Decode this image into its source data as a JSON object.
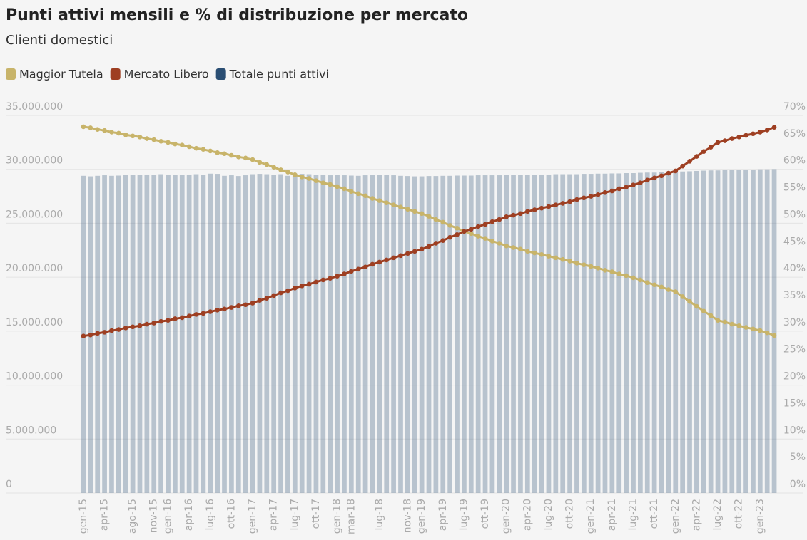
{
  "chart_data": {
    "type": "bar-line",
    "title": "Punti attivi mensili e % di distribuzione per mercato",
    "subtitle": "Clienti domestici",
    "categories": [
      "gen-15",
      null,
      null,
      "apr-15",
      null,
      null,
      null,
      "ago-15",
      null,
      null,
      "nov-15",
      null,
      "gen-16",
      null,
      null,
      "apr-16",
      null,
      null,
      "lug-16",
      null,
      null,
      "ott-16",
      null,
      null,
      "gen-17",
      null,
      null,
      "apr-17",
      null,
      null,
      "lug-17",
      null,
      null,
      "ott-17",
      null,
      null,
      "gen-18",
      null,
      "mar-18",
      null,
      null,
      null,
      "lug-18",
      null,
      null,
      null,
      "nov-18",
      null,
      "gen-19",
      null,
      null,
      "apr-19",
      null,
      null,
      "lug-19",
      null,
      null,
      "ott-19",
      null,
      null,
      "gen-20",
      null,
      null,
      "apr-20",
      null,
      null,
      "lug-20",
      null,
      null,
      "ott-20",
      null,
      null,
      "gen-21",
      null,
      null,
      "apr-21",
      null,
      null,
      "lug-21",
      null,
      null,
      "ott-21",
      null,
      null,
      "gen-22",
      null,
      null,
      "apr-22",
      null,
      null,
      "lug-22",
      null,
      null,
      "ott-22",
      null,
      null,
      "gen-23",
      null,
      null
    ],
    "series": [
      {
        "name": "Maggior Tutela",
        "color": "#c8b46a",
        "type": "line",
        "axis": "y2",
        "values": [
          67.9,
          67.7,
          67.4,
          67.2,
          66.9,
          66.7,
          66.4,
          66.2,
          66.0,
          65.7,
          65.5,
          65.2,
          65.0,
          64.7,
          64.5,
          64.2,
          63.9,
          63.7,
          63.4,
          63.1,
          62.9,
          62.6,
          62.3,
          62.1,
          61.8,
          61.3,
          60.9,
          60.4,
          59.9,
          59.5,
          59.0,
          58.6,
          58.3,
          57.9,
          57.5,
          57.2,
          56.8,
          56.4,
          55.9,
          55.5,
          55.1,
          54.6,
          54.2,
          53.8,
          53.4,
          53.0,
          52.6,
          52.2,
          51.8,
          51.3,
          50.7,
          50.2,
          49.6,
          49.1,
          48.5,
          48.1,
          47.6,
          47.2,
          46.7,
          46.3,
          45.8,
          45.5,
          45.2,
          44.8,
          44.5,
          44.2,
          43.9,
          43.6,
          43.3,
          43.0,
          42.6,
          42.3,
          42.0,
          41.7,
          41.3,
          41.0,
          40.6,
          40.3,
          39.9,
          39.5,
          39.0,
          38.6,
          38.2,
          37.7,
          37.3,
          36.4,
          35.5,
          34.6,
          33.7,
          32.9,
          32.0,
          31.7,
          31.3,
          31.0,
          30.7,
          30.4,
          30.1,
          29.7,
          29.2
        ]
      },
      {
        "name": "Mercato Libero",
        "color": "#9e3f22",
        "type": "line",
        "axis": "y2",
        "values": [
          29.1,
          29.3,
          29.6,
          29.8,
          30.1,
          30.3,
          30.6,
          30.8,
          31.0,
          31.3,
          31.5,
          31.8,
          32.0,
          32.3,
          32.5,
          32.8,
          33.1,
          33.3,
          33.6,
          33.9,
          34.1,
          34.4,
          34.7,
          34.9,
          35.2,
          35.7,
          36.1,
          36.6,
          37.1,
          37.5,
          38.0,
          38.4,
          38.7,
          39.1,
          39.5,
          39.8,
          40.2,
          40.6,
          41.1,
          41.5,
          41.9,
          42.4,
          42.8,
          43.2,
          43.6,
          44.0,
          44.4,
          44.8,
          45.2,
          45.7,
          46.3,
          46.8,
          47.4,
          47.9,
          48.5,
          48.9,
          49.4,
          49.8,
          50.3,
          50.7,
          51.2,
          51.5,
          51.8,
          52.2,
          52.5,
          52.8,
          53.1,
          53.4,
          53.7,
          54.0,
          54.4,
          54.7,
          55.0,
          55.3,
          55.7,
          56.0,
          56.4,
          56.7,
          57.1,
          57.5,
          58.0,
          58.4,
          58.8,
          59.3,
          59.7,
          60.6,
          61.5,
          62.4,
          63.3,
          64.1,
          65.0,
          65.3,
          65.7,
          66.0,
          66.3,
          66.6,
          66.9,
          67.3,
          67.8
        ]
      },
      {
        "name": "Totale punti attivi",
        "color": "#2a4e73",
        "type": "bar",
        "values": [
          29400000,
          29350000,
          29400000,
          29450000,
          29400000,
          29420000,
          29500000,
          29500000,
          29480000,
          29520000,
          29500000,
          29550000,
          29520000,
          29500000,
          29480000,
          29520000,
          29550000,
          29500000,
          29600000,
          29580000,
          29400000,
          29450000,
          29380000,
          29450000,
          29550000,
          29580000,
          29550000,
          29500000,
          29550000,
          29400000,
          29600000,
          29580000,
          29550000,
          29500000,
          29520000,
          29450000,
          29500000,
          29450000,
          29420000,
          29400000,
          29450000,
          29480000,
          29500000,
          29480000,
          29450000,
          29400000,
          29380000,
          29350000,
          29350000,
          29380000,
          29380000,
          29400000,
          29400000,
          29420000,
          29420000,
          29420000,
          29450000,
          29450000,
          29450000,
          29450000,
          29480000,
          29480000,
          29500000,
          29500000,
          29500000,
          29520000,
          29520000,
          29550000,
          29550000,
          29550000,
          29550000,
          29580000,
          29580000,
          29600000,
          29600000,
          29620000,
          29620000,
          29650000,
          29650000,
          29680000,
          29700000,
          29700000,
          29720000,
          29750000,
          29780000,
          29800000,
          29820000,
          29850000,
          29880000,
          29900000,
          29900000,
          29920000,
          29920000,
          29950000,
          29950000,
          29980000,
          30000000,
          30000000,
          30020000
        ]
      }
    ],
    "ylim": [
      0,
      35000000
    ],
    "yticks": [
      {
        "value": 0,
        "label": "0"
      },
      {
        "value": 5000000,
        "label": "5.000.000"
      },
      {
        "value": 10000000,
        "label": "10.000.000"
      },
      {
        "value": 15000000,
        "label": "15.000.000"
      },
      {
        "value": 20000000,
        "label": "20.000.000"
      },
      {
        "value": 25000000,
        "label": "25.000.000"
      },
      {
        "value": 30000000,
        "label": "30.000.000"
      },
      {
        "value": 35000000,
        "label": "35.000.000"
      }
    ],
    "y2lim": [
      0,
      70
    ],
    "y2ticks": [
      {
        "value": 0,
        "label": "0%"
      },
      {
        "value": 5,
        "label": "5%"
      },
      {
        "value": 10,
        "label": "10%"
      },
      {
        "value": 15,
        "label": "15%"
      },
      {
        "value": 20,
        "label": "20%"
      },
      {
        "value": 25,
        "label": "25%"
      },
      {
        "value": 30,
        "label": "30%"
      },
      {
        "value": 35,
        "label": "35%"
      },
      {
        "value": 40,
        "label": "40%"
      },
      {
        "value": 45,
        "label": "45%"
      },
      {
        "value": 50,
        "label": "50%"
      },
      {
        "value": 55,
        "label": "55%"
      },
      {
        "value": 60,
        "label": "60%"
      },
      {
        "value": 65,
        "label": "65%"
      },
      {
        "value": 70,
        "label": "70%"
      }
    ],
    "grid": true,
    "legend": "top-left"
  }
}
